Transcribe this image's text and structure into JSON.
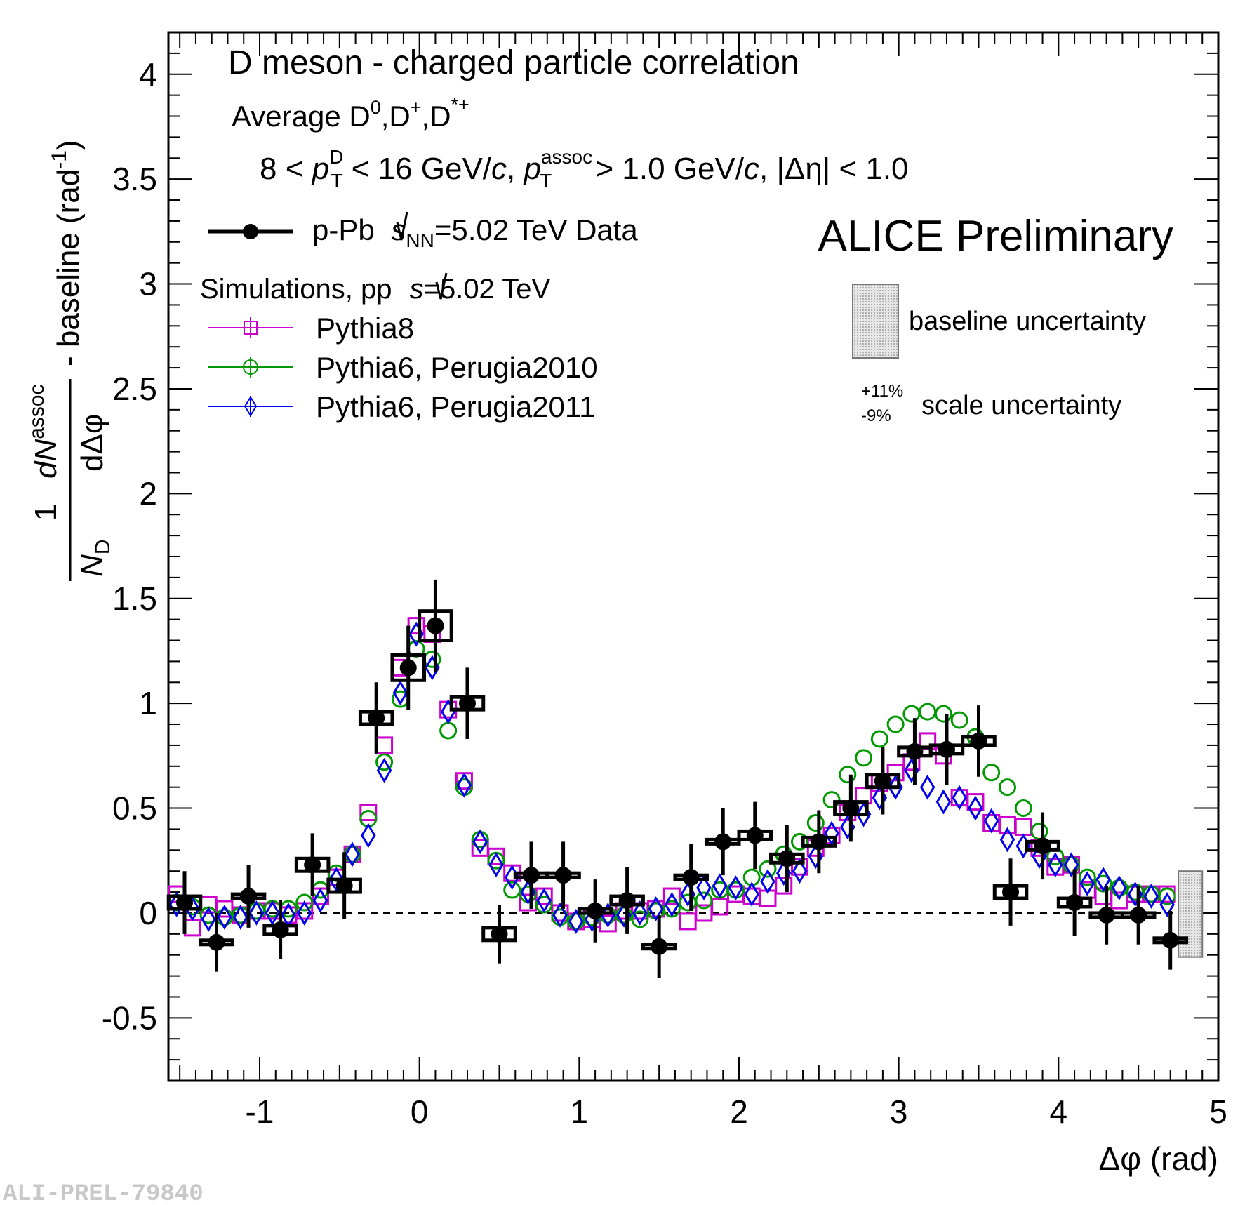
{
  "chart_data": {
    "type": "scatter",
    "title": "D meson  - charged particle correlation",
    "subtitle": "Average D0,D+,D*+",
    "kinematics": "8 < pT D < 16 GeV/c, pT assoc > 1.0 GeV/c, |Δη| < 1.0",
    "kin": {
      "p1": "8 < ",
      "p": "p",
      "T": "T",
      "D": "D",
      "p2": " < 16 GeV/",
      "c": "c",
      "p3": ", ",
      "assoc": "assoc",
      "p4": " > 1.0 GeV/",
      "p5": ", |Δη| < 1.0"
    },
    "sub": {
      "avg": "Average D",
      "zero": "0",
      "plus": "+",
      "starplus": "*+",
      "comma": ",",
      "D": "D"
    },
    "xlabel": "Δφ (rad)",
    "ylabel": "1/N_D dN^assoc/dΔφ - baseline (rad^-1)",
    "ylab": {
      "one": "1",
      "dN": "dN",
      "assoc": "assoc",
      "N": "N",
      "D": "D",
      "dphi": "dΔφ",
      "base": "- baseline (rad",
      "exp": "-1",
      "close": ")"
    },
    "xlim": [
      -1.571,
      5.0
    ],
    "ylim": [
      -0.8,
      4.2
    ],
    "xticks": [
      "-1",
      "0",
      "1",
      "2",
      "3",
      "4",
      "5"
    ],
    "yticks": [
      "-0.5",
      "0",
      "0.5",
      "1",
      "1.5",
      "2",
      "2.5",
      "3",
      "3.5",
      "4"
    ],
    "experiment": "ALICE Preliminary",
    "legend": {
      "data_label_a": "p-Pb ",
      "data_label_s": "s",
      "data_label_nn": "NN",
      "data_label_b": "=5.02 TeV Data",
      "sim_a": "Simulations, pp ",
      "sim_s": "s",
      "sim_b": "=5.02 TeV",
      "pythia8": "Pythia8",
      "p6_2010": "Pythia6, Perugia2010",
      "p6_2011": "Pythia6, Perugia2011"
    },
    "baseline_uncertainty_label": "baseline uncertainty",
    "scale_uncertainty": {
      "up": "+11%",
      "down": "-9%",
      "label": "scale uncertainty"
    },
    "baseline_band": [
      -0.21,
      0.2
    ],
    "colors": {
      "data": "#000000",
      "pythia8": "#cc00cc",
      "perugia2010": "#009900",
      "perugia2011": "#0000ee",
      "band": "#b0b0b0"
    },
    "series": [
      {
        "name": "p-Pb √sNN=5.02 TeV Data",
        "x": [
          -1.47,
          -1.27,
          -1.07,
          -0.87,
          -0.67,
          -0.47,
          -0.27,
          -0.07,
          0.1,
          0.3,
          0.5,
          0.7,
          0.9,
          1.1,
          1.3,
          1.5,
          1.7,
          1.9,
          2.1,
          2.3,
          2.5,
          2.7,
          2.9,
          3.1,
          3.3,
          3.5,
          3.7,
          3.9,
          4.1,
          4.3,
          4.5,
          4.7
        ],
        "values": [
          0.05,
          -0.14,
          0.08,
          -0.08,
          0.23,
          0.13,
          0.93,
          1.17,
          1.37,
          1.0,
          -0.1,
          0.18,
          0.18,
          0.01,
          0.06,
          -0.16,
          0.17,
          0.34,
          0.37,
          0.26,
          0.34,
          0.5,
          0.63,
          0.77,
          0.78,
          0.82,
          0.1,
          0.32,
          0.05,
          -0.01,
          -0.01,
          -0.13
        ],
        "errors": [
          0.15,
          0.14,
          0.15,
          0.14,
          0.15,
          0.16,
          0.17,
          0.2,
          0.22,
          0.17,
          0.14,
          0.16,
          0.16,
          0.15,
          0.16,
          0.15,
          0.16,
          0.16,
          0.16,
          0.16,
          0.15,
          0.16,
          0.16,
          0.16,
          0.17,
          0.17,
          0.16,
          0.16,
          0.16,
          0.14,
          0.14,
          0.14
        ],
        "syst": [
          0.03,
          0.01,
          0.01,
          0.02,
          0.03,
          0.03,
          0.03,
          0.06,
          0.07,
          0.03,
          0.03,
          0.01,
          0.01,
          0.01,
          0.02,
          0.01,
          0.01,
          0.01,
          0.02,
          0.02,
          0.02,
          0.03,
          0.03,
          0.02,
          0.02,
          0.02,
          0.03,
          0.02,
          0.02,
          0.01,
          0.01,
          0.01
        ]
      },
      {
        "name": "Pythia8",
        "x": [
          -1.52,
          -1.42,
          -1.32,
          -1.22,
          -1.12,
          -1.02,
          -0.92,
          -0.82,
          -0.72,
          -0.62,
          -0.52,
          -0.42,
          -0.32,
          -0.22,
          -0.12,
          -0.02,
          0.08,
          0.18,
          0.28,
          0.38,
          0.48,
          0.58,
          0.68,
          0.78,
          0.88,
          0.98,
          1.08,
          1.18,
          1.28,
          1.38,
          1.48,
          1.58,
          1.68,
          1.78,
          1.88,
          1.98,
          2.08,
          2.18,
          2.28,
          2.38,
          2.48,
          2.58,
          2.68,
          2.78,
          2.88,
          2.98,
          3.08,
          3.18,
          3.28,
          3.38,
          3.48,
          3.58,
          3.68,
          3.78,
          3.88,
          3.98,
          4.08,
          4.18,
          4.28,
          4.38,
          4.48,
          4.58,
          4.68
        ],
        "values": [
          0.09,
          -0.07,
          0.04,
          0.02,
          -0.01,
          0.01,
          0.01,
          -0.01,
          0.01,
          0.08,
          0.17,
          0.28,
          0.48,
          0.8,
          1.17,
          1.37,
          1.33,
          0.97,
          0.63,
          0.31,
          0.27,
          0.19,
          0.05,
          0.08,
          0.0,
          -0.04,
          -0.03,
          -0.05,
          0.01,
          0.01,
          0.02,
          0.08,
          -0.04,
          0.0,
          0.03,
          0.09,
          0.08,
          0.07,
          0.13,
          0.22,
          0.31,
          0.37,
          0.48,
          0.56,
          0.62,
          0.67,
          0.72,
          0.82,
          0.75,
          0.55,
          0.53,
          0.43,
          0.42,
          0.41,
          0.31,
          0.22,
          0.23,
          0.11,
          0.08,
          0.06,
          0.09,
          0.09,
          0.09
        ]
      },
      {
        "name": "Pythia6, Perugia2010",
        "x": [
          -1.52,
          -1.42,
          -1.32,
          -1.22,
          -1.12,
          -1.02,
          -0.92,
          -0.82,
          -0.72,
          -0.62,
          -0.52,
          -0.42,
          -0.32,
          -0.22,
          -0.12,
          -0.02,
          0.08,
          0.18,
          0.28,
          0.38,
          0.48,
          0.58,
          0.68,
          0.78,
          0.88,
          0.98,
          1.08,
          1.18,
          1.28,
          1.38,
          1.48,
          1.58,
          1.68,
          1.78,
          1.88,
          1.98,
          2.08,
          2.18,
          2.28,
          2.38,
          2.48,
          2.58,
          2.68,
          2.78,
          2.88,
          2.98,
          3.08,
          3.18,
          3.28,
          3.38,
          3.48,
          3.58,
          3.68,
          3.78,
          3.88,
          3.98,
          4.08,
          4.18,
          4.28,
          4.38,
          4.48,
          4.58,
          4.68
        ],
        "values": [
          0.05,
          0.03,
          -0.01,
          -0.02,
          -0.01,
          0.01,
          0.02,
          0.02,
          0.05,
          0.11,
          0.19,
          0.28,
          0.45,
          0.72,
          1.02,
          1.26,
          1.21,
          0.87,
          0.6,
          0.35,
          0.25,
          0.11,
          0.09,
          0.04,
          -0.02,
          -0.04,
          -0.02,
          -0.01,
          -0.01,
          -0.03,
          0.01,
          0.02,
          0.05,
          0.06,
          0.11,
          0.11,
          0.17,
          0.21,
          0.28,
          0.34,
          0.43,
          0.54,
          0.66,
          0.74,
          0.83,
          0.9,
          0.95,
          0.96,
          0.95,
          0.92,
          0.84,
          0.67,
          0.6,
          0.5,
          0.39,
          0.27,
          0.23,
          0.17,
          0.14,
          0.12,
          0.1,
          0.09,
          0.08
        ]
      },
      {
        "name": "Pythia6, Perugia2011",
        "x": [
          -1.52,
          -1.42,
          -1.32,
          -1.22,
          -1.12,
          -1.02,
          -0.92,
          -0.82,
          -0.72,
          -0.62,
          -0.52,
          -0.42,
          -0.32,
          -0.22,
          -0.12,
          -0.02,
          0.08,
          0.18,
          0.28,
          0.38,
          0.48,
          0.58,
          0.68,
          0.78,
          0.88,
          0.98,
          1.08,
          1.18,
          1.28,
          1.38,
          1.48,
          1.58,
          1.68,
          1.78,
          1.88,
          1.98,
          2.08,
          2.18,
          2.28,
          2.38,
          2.48,
          2.58,
          2.68,
          2.78,
          2.88,
          2.98,
          3.08,
          3.18,
          3.28,
          3.38,
          3.48,
          3.58,
          3.68,
          3.78,
          3.88,
          3.98,
          4.08,
          4.18,
          4.28,
          4.38,
          4.48,
          4.58,
          4.68
        ],
        "values": [
          0.04,
          0.02,
          -0.03,
          -0.02,
          -0.02,
          0.0,
          0.0,
          -0.01,
          0.0,
          0.06,
          0.16,
          0.28,
          0.37,
          0.68,
          1.05,
          1.33,
          1.17,
          0.96,
          0.61,
          0.34,
          0.23,
          0.17,
          0.1,
          0.06,
          -0.01,
          -0.04,
          -0.03,
          -0.01,
          -0.01,
          0.0,
          0.02,
          0.04,
          0.09,
          0.12,
          0.13,
          0.12,
          0.09,
          0.15,
          0.19,
          0.2,
          0.27,
          0.38,
          0.41,
          0.47,
          0.55,
          0.6,
          0.68,
          0.6,
          0.53,
          0.55,
          0.5,
          0.44,
          0.35,
          0.32,
          0.27,
          0.23,
          0.23,
          0.14,
          0.16,
          0.12,
          0.09,
          0.08,
          0.04
        ]
      }
    ]
  },
  "watermark": "ALI-PREL-79840"
}
